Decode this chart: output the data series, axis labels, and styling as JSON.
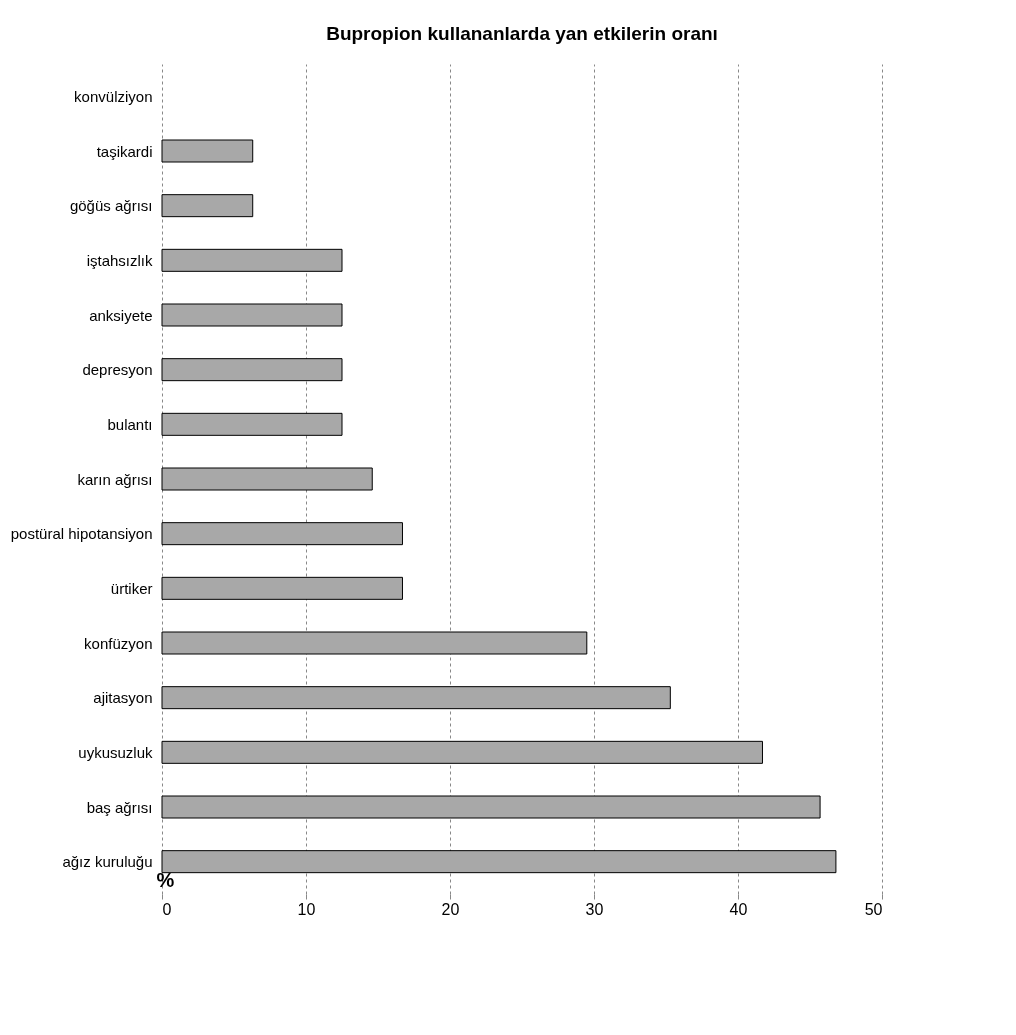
{
  "chart_data": {
    "type": "bar",
    "orientation": "horizontal",
    "title": "Bupropion kullananlarda yan etkilerin oranı",
    "xlabel": "%",
    "categories": [
      "konvülziyon",
      "taşikardi",
      "göğüs ağrısı",
      "iştahsızlık",
      "anksiyete",
      "depresyon",
      "bulantı",
      "karın ağrısı",
      "postüral hipotansiyon",
      "ürtiker",
      "konfüzyon",
      "ajitasyon",
      "uykusuzluk",
      "baş ağrısı",
      "ağız kuruluğu"
    ],
    "values": [
      0,
      6.3,
      6.3,
      12.5,
      12.5,
      12.5,
      12.5,
      14.6,
      16.7,
      16.7,
      29.5,
      35.3,
      41.7,
      45.7,
      46.8
    ],
    "color": "#a8a8a8",
    "xlim": [
      0,
      50
    ],
    "xticks": [
      0,
      10,
      20,
      30,
      40,
      50
    ],
    "grid": "x"
  }
}
